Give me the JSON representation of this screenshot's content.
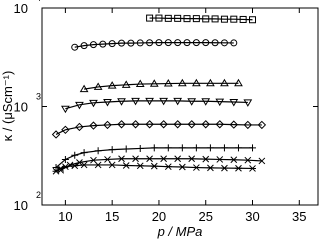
{
  "chart_data": {
    "type": "line",
    "log_y": true,
    "x_label": "p / MPa",
    "y_label": "κ / (μScm⁻¹)",
    "xlim": [
      7.5,
      37
    ],
    "xticks": [
      10,
      15,
      20,
      25,
      30,
      35
    ],
    "ylim": [
      100,
      10000
    ],
    "yticks": [
      {
        "value": 100,
        "label": "10",
        "exponent": "2"
      },
      {
        "value": 1000,
        "label": "10",
        "exponent": "3"
      },
      {
        "value": 10000,
        "label": "10",
        "exponent": "4"
      }
    ],
    "series": [
      {
        "marker": "square",
        "color": "#000000",
        "x": [
          19,
          20,
          21,
          22,
          23,
          24,
          25,
          26,
          27,
          28,
          29,
          30
        ],
        "values": [
          7900,
          7900,
          7850,
          7850,
          7800,
          7800,
          7750,
          7750,
          7700,
          7700,
          7650,
          7600
        ]
      },
      {
        "marker": "circle",
        "color": "#000000",
        "x": [
          11,
          12,
          13,
          14,
          15,
          16,
          17,
          18,
          19,
          20,
          21,
          22,
          23,
          24,
          25,
          26,
          27,
          28
        ],
        "values": [
          4000,
          4150,
          4250,
          4300,
          4350,
          4400,
          4400,
          4420,
          4440,
          4450,
          4450,
          4450,
          4450,
          4450,
          4450,
          4440,
          4430,
          4420
        ]
      },
      {
        "marker": "triangle",
        "color": "#000000",
        "x": [
          12,
          13.5,
          15,
          16.5,
          18,
          19.5,
          21,
          22.5,
          24,
          25.5,
          27,
          28.5
        ],
        "values": [
          1500,
          1580,
          1630,
          1660,
          1690,
          1700,
          1710,
          1720,
          1720,
          1720,
          1720,
          1720
        ]
      },
      {
        "marker": "triangle-down",
        "color": "#000000",
        "x": [
          10,
          11.5,
          13,
          14.5,
          16,
          17.5,
          19,
          20.5,
          22,
          23.5,
          25,
          26.5,
          28,
          29.5
        ],
        "values": [
          950,
          1040,
          1090,
          1110,
          1130,
          1140,
          1140,
          1140,
          1140,
          1130,
          1130,
          1120,
          1110,
          1100
        ]
      },
      {
        "marker": "diamond",
        "color": "#000000",
        "x": [
          9,
          10,
          11.5,
          13,
          14.5,
          16,
          17.5,
          19,
          20.5,
          22,
          23.5,
          25,
          26.5,
          28,
          29.5,
          31
        ],
        "values": [
          520,
          580,
          620,
          640,
          650,
          660,
          660,
          660,
          660,
          660,
          660,
          660,
          660,
          655,
          650,
          650
        ]
      },
      {
        "marker": "plus",
        "color": "#000000",
        "x": [
          9,
          10,
          11,
          12,
          13.5,
          15,
          16.5,
          18,
          19.5,
          21,
          22.5,
          24,
          25.5,
          27,
          28.5,
          30
        ],
        "values": [
          240,
          290,
          320,
          340,
          355,
          365,
          370,
          375,
          380,
          380,
          380,
          380,
          380,
          380,
          380,
          380
        ]
      },
      {
        "marker": "cross",
        "color": "#000000",
        "x": [
          9.5,
          10.5,
          11.5,
          13,
          14.5,
          16,
          17.5,
          19,
          20.5,
          22,
          23.5,
          25,
          26.5,
          28,
          29.5,
          31
        ],
        "values": [
          225,
          255,
          270,
          285,
          290,
          295,
          295,
          295,
          295,
          295,
          295,
          292,
          290,
          288,
          285,
          280
        ]
      },
      {
        "marker": "asterisk",
        "color": "#000000",
        "x": [
          9,
          9.5,
          10,
          11,
          12,
          13.5,
          15,
          16.5,
          18,
          19.5,
          21,
          22.5,
          24,
          25.5,
          27,
          28.5,
          30
        ],
        "values": [
          220,
          235,
          245,
          250,
          255,
          255,
          255,
          252,
          250,
          248,
          245,
          243,
          240,
          238,
          237,
          236,
          235
        ]
      }
    ]
  }
}
